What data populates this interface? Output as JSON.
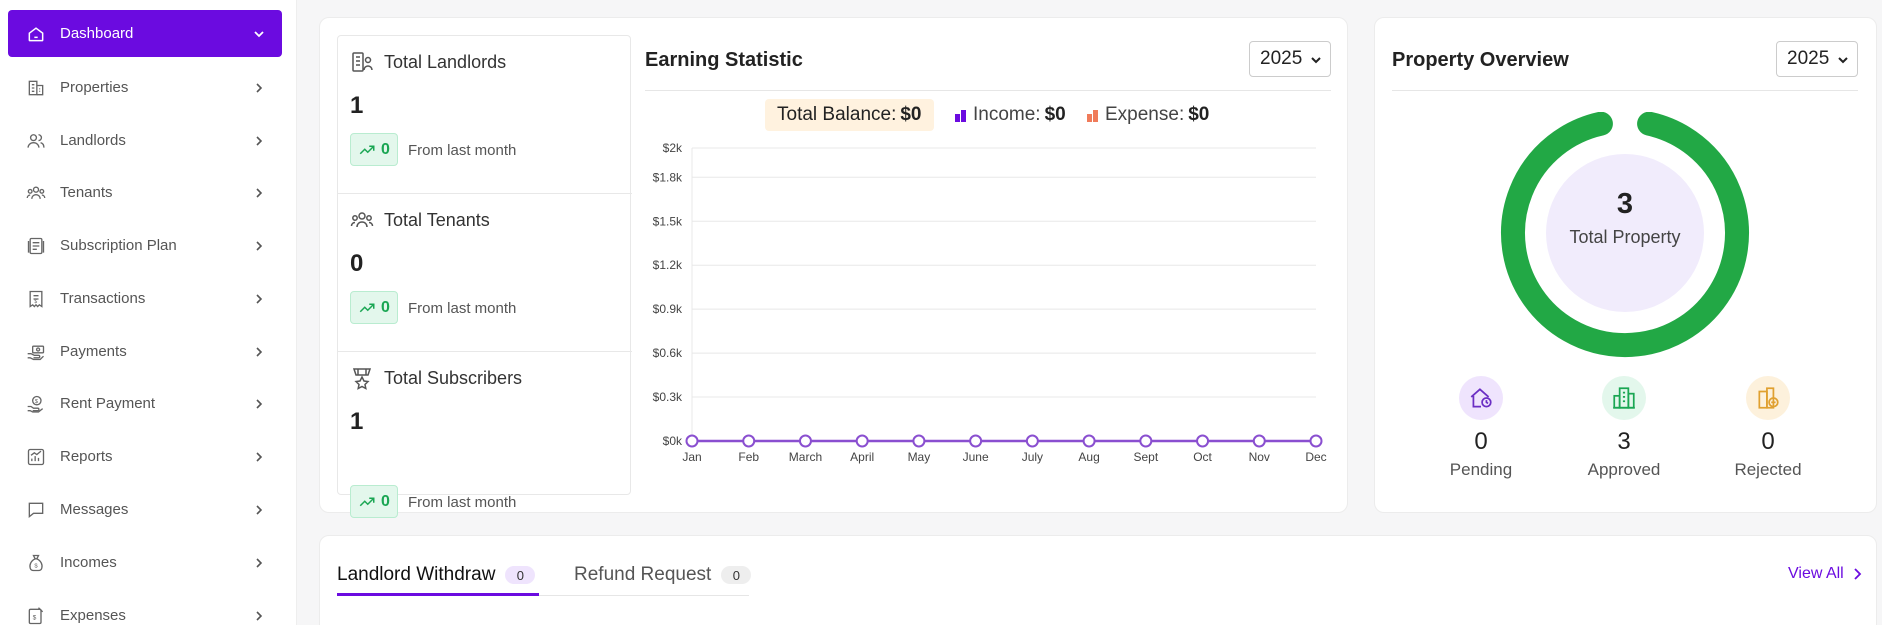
{
  "sidebar": {
    "items": [
      {
        "label": "Dashboard",
        "icon": "home-icon",
        "active": true
      },
      {
        "label": "Properties",
        "icon": "building-icon"
      },
      {
        "label": "Landlords",
        "icon": "users-icon"
      },
      {
        "label": "Tenants",
        "icon": "group-icon"
      },
      {
        "label": "Subscription Plan",
        "icon": "document-icon"
      },
      {
        "label": "Transactions",
        "icon": "receipt-icon"
      },
      {
        "label": "Payments",
        "icon": "money-hand-icon"
      },
      {
        "label": "Rent Payment",
        "icon": "rent-hand-icon"
      },
      {
        "label": "Reports",
        "icon": "chart-report-icon"
      },
      {
        "label": "Messages",
        "icon": "message-icon"
      },
      {
        "label": "Incomes",
        "icon": "money-bag-icon"
      },
      {
        "label": "Expenses",
        "icon": "expense-receipt-icon"
      }
    ]
  },
  "stats": [
    {
      "title": "Total Landlords",
      "value": "1",
      "change": "0",
      "sub": "From last month"
    },
    {
      "title": "Total Tenants",
      "value": "0",
      "change": "0",
      "sub": "From last month"
    },
    {
      "title": "Total Subscribers",
      "value": "1",
      "change": "0",
      "sub": "From last month"
    }
  ],
  "earning": {
    "title": "Earning Statistic",
    "year": "2025",
    "balance_label": "Total Balance:",
    "balance_value": "$0",
    "income_label": "Income:",
    "income_value": "$0",
    "expense_label": "Expense:",
    "expense_value": "$0",
    "colors": {
      "income": "#6b0be0",
      "expense": "#f07b5a",
      "line": "#8a4fd0"
    }
  },
  "chart_data": {
    "type": "line",
    "categories": [
      "Jan",
      "Feb",
      "March",
      "April",
      "May",
      "June",
      "July",
      "Aug",
      "Sept",
      "Oct",
      "Nov",
      "Dec"
    ],
    "series": [
      {
        "values": [
          0,
          0,
          0,
          0,
          0,
          0,
          0,
          0,
          0,
          0,
          0,
          0
        ]
      }
    ],
    "yticks": [
      "$0k",
      "$0.3k",
      "$0.6k",
      "$0.9k",
      "$1.2k",
      "$1.5k",
      "$1.8k",
      "$2k"
    ],
    "ytick_values": [
      0,
      300,
      600,
      900,
      1200,
      1500,
      1800,
      2000
    ],
    "ylim": [
      0,
      2000
    ],
    "grid": true
  },
  "overview": {
    "title": "Property Overview",
    "year": "2025",
    "total": "3",
    "total_label": "Total Property",
    "donut_color": "#22a845",
    "statuses": [
      {
        "value": "0",
        "label": "Pending",
        "icon": "house-clock-icon",
        "color": "#6b2fc4",
        "bg": "#efe4fd"
      },
      {
        "value": "3",
        "label": "Approved",
        "icon": "buildings-icon",
        "color": "#1aa653",
        "bg": "#e3f7ec"
      },
      {
        "value": "0",
        "label": "Rejected",
        "icon": "building-minus-icon",
        "color": "#e0a030",
        "bg": "#fdf1dc"
      }
    ]
  },
  "tabs": [
    {
      "label": "Landlord Withdraw",
      "count": "0",
      "active": true
    },
    {
      "label": "Refund Request",
      "count": "0",
      "active": false
    }
  ],
  "view_all": "View All"
}
